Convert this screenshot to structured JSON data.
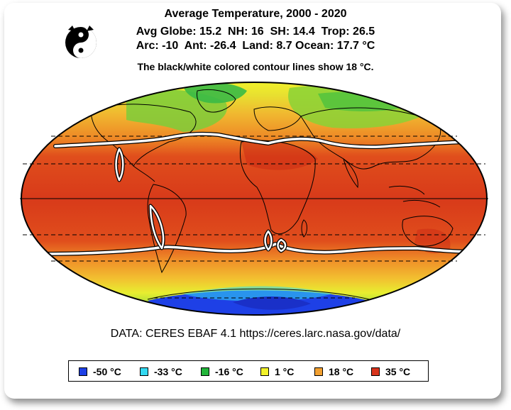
{
  "header": {
    "title": "Average Temperature, 2000 - 2020",
    "stats_line1": "Avg Globe: 15.2  NH: 16  SH: 14.4  Trop: 26.5",
    "stats_line2": "Arc: -10  Ant: -26.4  Land: 8.7 Ocean: 17.7 °C",
    "contour_note": "The black/white colored contour lines show 18 °C."
  },
  "source": "DATA: CERES EBAF 4.1 https://ceres.larc.nasa.gov/data/",
  "legend": [
    {
      "label": "-50 °C",
      "color": "#1e40e6"
    },
    {
      "label": "-33 °C",
      "color": "#33d9f2"
    },
    {
      "label": "-16 °C",
      "color": "#22b53a"
    },
    {
      "label": "1 °C",
      "color": "#f2f22a"
    },
    {
      "label": "18 °C",
      "color": "#f2a030"
    },
    {
      "label": "35 °C",
      "color": "#d8341c"
    }
  ],
  "map": {
    "projection": "Mollweide",
    "contour_value": "18 °C"
  }
}
